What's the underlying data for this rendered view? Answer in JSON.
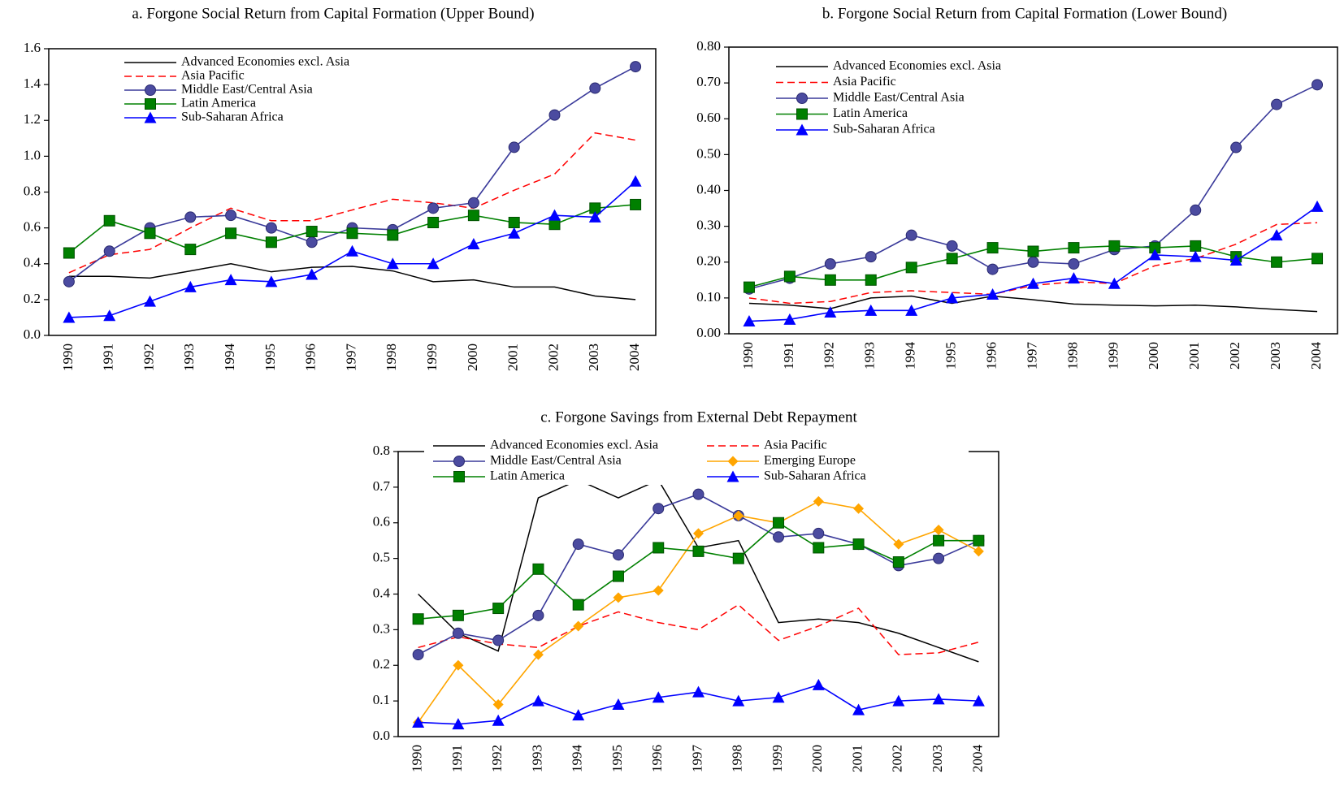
{
  "chart_data": [
    {
      "type": "line",
      "title": "a. Forgone Social Return from Capital Formation (Upper Bound)",
      "categories": [
        "1990",
        "1991",
        "1992",
        "1993",
        "1994",
        "1995",
        "1996",
        "1997",
        "1998",
        "1999",
        "2000",
        "2001",
        "2002",
        "2003",
        "2004"
      ],
      "ylim": [
        0,
        1.6
      ],
      "yticks": [
        {
          "value": 0,
          "label": "0.0"
        },
        0.2,
        0.4,
        0.6,
        0.8,
        {
          "value": 1,
          "label": "1.0"
        },
        1.2,
        1.4,
        1.6
      ],
      "series": [
        {
          "name": "Advanced Economies excl. Asia",
          "color": "#000000",
          "values": [
            0.33,
            0.33,
            0.32,
            0.36,
            0.4,
            0.355,
            0.38,
            0.385,
            0.36,
            0.3,
            0.31,
            0.27,
            0.27,
            0.22,
            0.2
          ]
        },
        {
          "name": "Asia Pacific",
          "color": "#ff0000",
          "dash": true,
          "values": [
            0.35,
            0.45,
            0.48,
            0.6,
            0.71,
            0.64,
            0.64,
            0.7,
            0.76,
            0.74,
            0.71,
            0.81,
            0.9,
            1.13,
            1.09
          ]
        },
        {
          "name": "Middle East/Central Asia",
          "color": "#3a3a9a",
          "marker": "circle",
          "values": [
            0.3,
            0.47,
            0.6,
            0.66,
            0.67,
            0.6,
            0.52,
            0.6,
            0.59,
            0.71,
            0.74,
            1.05,
            1.23,
            1.38,
            1.5
          ]
        },
        {
          "name": "Latin America",
          "color": "#008000",
          "marker": "square",
          "values": [
            0.46,
            0.64,
            0.57,
            0.48,
            0.57,
            0.52,
            0.58,
            0.57,
            0.56,
            0.63,
            0.67,
            0.63,
            0.62,
            0.71,
            0.73
          ]
        },
        {
          "name": "Sub-Saharan Africa",
          "color": "#0000ff",
          "marker": "triangle",
          "values": [
            0.1,
            0.11,
            0.19,
            0.27,
            0.31,
            0.3,
            0.34,
            0.47,
            0.4,
            0.4,
            0.51,
            0.57,
            0.67,
            0.66,
            0.86
          ]
        }
      ]
    },
    {
      "type": "line",
      "title": "b. Forgone Social Return from Capital Formation (Lower Bound)",
      "categories": [
        "1990",
        "1991",
        "1992",
        "1993",
        "1994",
        "1995",
        "1996",
        "1997",
        "1998",
        "1999",
        "2000",
        "2001",
        "2002",
        "2003",
        "2004"
      ],
      "ylim": [
        0,
        0.8
      ],
      "yticks": [
        {
          "value": 0,
          "label": "0.00"
        },
        {
          "value": 0.1,
          "label": "0.10"
        },
        {
          "value": 0.2,
          "label": "0.20"
        },
        {
          "value": 0.3,
          "label": "0.30"
        },
        {
          "value": 0.4,
          "label": "0.40"
        },
        {
          "value": 0.5,
          "label": "0.50"
        },
        {
          "value": 0.6,
          "label": "0.60"
        },
        {
          "value": 0.7,
          "label": "0.70"
        },
        {
          "value": 0.8,
          "label": "0.80"
        }
      ],
      "series": [
        {
          "name": "Advanced Economies excl. Asia",
          "color": "#000000",
          "values": [
            0.085,
            0.08,
            0.07,
            0.1,
            0.105,
            0.085,
            0.105,
            0.095,
            0.083,
            0.08,
            0.078,
            0.08,
            0.075,
            0.068,
            0.062
          ]
        },
        {
          "name": "Asia Pacific",
          "color": "#ff0000",
          "dash": true,
          "values": [
            0.1,
            0.085,
            0.09,
            0.115,
            0.12,
            0.115,
            0.11,
            0.135,
            0.145,
            0.14,
            0.19,
            0.21,
            0.25,
            0.305,
            0.31
          ]
        },
        {
          "name": "Middle East/Central Asia",
          "color": "#3a3a9a",
          "marker": "circle",
          "values": [
            0.125,
            0.155,
            0.195,
            0.215,
            0.275,
            0.245,
            0.18,
            0.2,
            0.195,
            0.235,
            0.245,
            0.345,
            0.52,
            0.64,
            0.695
          ]
        },
        {
          "name": "Latin America",
          "color": "#008000",
          "marker": "square",
          "values": [
            0.13,
            0.16,
            0.15,
            0.15,
            0.185,
            0.21,
            0.24,
            0.23,
            0.24,
            0.245,
            0.24,
            0.245,
            0.215,
            0.2,
            0.21
          ]
        },
        {
          "name": "Sub-Saharan Africa",
          "color": "#0000ff",
          "marker": "triangle",
          "values": [
            0.035,
            0.04,
            0.06,
            0.065,
            0.065,
            0.1,
            0.11,
            0.14,
            0.155,
            0.14,
            0.22,
            0.215,
            0.205,
            0.275,
            0.355
          ]
        }
      ]
    },
    {
      "type": "line",
      "title": "c. Forgone Savings from External Debt Repayment",
      "categories": [
        "1990",
        "1991",
        "1992",
        "1993",
        "1994",
        "1995",
        "1996",
        "1997",
        "1998",
        "1999",
        "2000",
        "2001",
        "2002",
        "2003",
        "2004"
      ],
      "ylim": [
        0,
        0.8
      ],
      "yticks": [
        {
          "value": 0,
          "label": "0.0"
        },
        0.1,
        0.2,
        0.3,
        0.4,
        0.5,
        0.6,
        0.7,
        0.8
      ],
      "series": [
        {
          "name": "Advanced Economies excl. Asia",
          "color": "#000000",
          "values": [
            0.4,
            0.29,
            0.24,
            0.67,
            0.72,
            0.67,
            0.72,
            0.53,
            0.55,
            0.32,
            0.33,
            0.32,
            0.29,
            0.25,
            0.21
          ]
        },
        {
          "name": "Asia Pacific",
          "color": "#ff0000",
          "dash": true,
          "values": [
            0.25,
            0.28,
            0.26,
            0.25,
            0.31,
            0.35,
            0.32,
            0.3,
            0.37,
            0.27,
            0.31,
            0.36,
            0.23,
            0.235,
            0.265
          ]
        },
        {
          "name": "Middle East/Central Asia",
          "color": "#3a3a9a",
          "marker": "circle",
          "values": [
            0.23,
            0.29,
            0.27,
            0.34,
            0.54,
            0.51,
            0.64,
            0.68,
            0.62,
            0.56,
            0.57,
            0.54,
            0.48,
            0.5,
            0.55
          ]
        },
        {
          "name": "Emerging Europe",
          "color": "#ffa500",
          "marker": "diamond",
          "values": [
            0.04,
            0.2,
            0.09,
            0.23,
            0.31,
            0.39,
            0.41,
            0.57,
            0.62,
            0.6,
            0.66,
            0.64,
            0.54,
            0.58,
            0.52
          ]
        },
        {
          "name": "Latin America",
          "color": "#008000",
          "marker": "square",
          "values": [
            0.33,
            0.34,
            0.36,
            0.47,
            0.37,
            0.45,
            0.53,
            0.52,
            0.5,
            0.6,
            0.53,
            0.54,
            0.49,
            0.55,
            0.55
          ]
        },
        {
          "name": "Sub-Saharan Africa",
          "color": "#0000ff",
          "marker": "triangle",
          "values": [
            0.04,
            0.035,
            0.045,
            0.1,
            0.06,
            0.09,
            0.11,
            0.125,
            0.1,
            0.11,
            0.145,
            0.075,
            0.1,
            0.105,
            0.1
          ]
        }
      ]
    }
  ]
}
